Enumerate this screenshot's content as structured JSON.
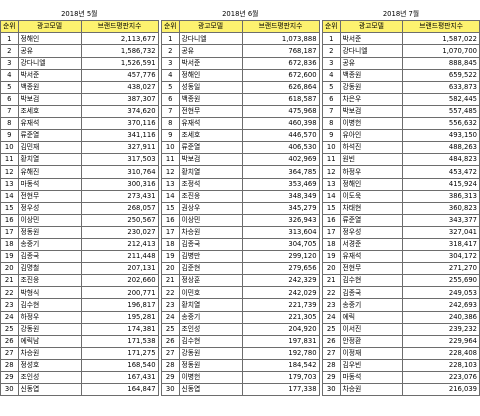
{
  "headers": {
    "rank": "순위",
    "model": "광고모델",
    "score": "브랜드평판지수"
  },
  "tables": [
    {
      "title": "2018년 5월",
      "rows": [
        [
          "1",
          "정해인",
          "2,113,677"
        ],
        [
          "2",
          "공유",
          "1,586,732"
        ],
        [
          "3",
          "강다니엘",
          "1,526,591"
        ],
        [
          "4",
          "박서준",
          "457,776"
        ],
        [
          "5",
          "백종원",
          "438,027"
        ],
        [
          "6",
          "박보검",
          "387,307"
        ],
        [
          "7",
          "조세호",
          "374,620"
        ],
        [
          "8",
          "유재석",
          "370,116"
        ],
        [
          "9",
          "류준열",
          "341,116"
        ],
        [
          "10",
          "김민재",
          "327,911"
        ],
        [
          "11",
          "황치열",
          "317,503"
        ],
        [
          "12",
          "유해진",
          "310,764"
        ],
        [
          "13",
          "마동석",
          "300,316"
        ],
        [
          "14",
          "전현무",
          "273,431"
        ],
        [
          "15",
          "정우성",
          "268,057"
        ],
        [
          "16",
          "이상민",
          "250,567"
        ],
        [
          "17",
          "정동원",
          "230,027"
        ],
        [
          "18",
          "송중기",
          "212,413"
        ],
        [
          "19",
          "김종국",
          "211,448"
        ],
        [
          "20",
          "김명철",
          "207,131"
        ],
        [
          "21",
          "조진웅",
          "202,660"
        ],
        [
          "22",
          "박형식",
          "200,771"
        ],
        [
          "23",
          "김수현",
          "196,817"
        ],
        [
          "24",
          "하정우",
          "195,281"
        ],
        [
          "25",
          "강동원",
          "174,381"
        ],
        [
          "26",
          "에릭남",
          "171,538"
        ],
        [
          "27",
          "차승원",
          "171,275"
        ],
        [
          "28",
          "정성호",
          "168,540"
        ],
        [
          "29",
          "조인성",
          "167,431"
        ],
        [
          "30",
          "신동엽",
          "164,847"
        ]
      ]
    },
    {
      "title": "2018년 6월",
      "rows": [
        [
          "1",
          "강다니엘",
          "1,073,888"
        ],
        [
          "2",
          "공유",
          "768,187"
        ],
        [
          "3",
          "박서준",
          "672,836"
        ],
        [
          "4",
          "정해인",
          "672,600"
        ],
        [
          "5",
          "성동일",
          "626,864"
        ],
        [
          "6",
          "백종원",
          "618,587"
        ],
        [
          "7",
          "전현무",
          "475,968"
        ],
        [
          "8",
          "유재석",
          "460,398"
        ],
        [
          "9",
          "조세호",
          "446,570"
        ],
        [
          "10",
          "류준열",
          "406,530"
        ],
        [
          "11",
          "박보검",
          "402,969"
        ],
        [
          "12",
          "황치열",
          "364,785"
        ],
        [
          "13",
          "조정석",
          "353,469"
        ],
        [
          "14",
          "조진웅",
          "348,349"
        ],
        [
          "15",
          "권상우",
          "345,279"
        ],
        [
          "16",
          "이상민",
          "326,943"
        ],
        [
          "17",
          "차승원",
          "313,604"
        ],
        [
          "18",
          "김종국",
          "304,705"
        ],
        [
          "19",
          "김병만",
          "299,120"
        ],
        [
          "20",
          "김준현",
          "279,656"
        ],
        [
          "21",
          "정상훈",
          "242,329"
        ],
        [
          "22",
          "이민호",
          "242,029"
        ],
        [
          "23",
          "황치열",
          "221,739"
        ],
        [
          "24",
          "송중기",
          "221,305"
        ],
        [
          "25",
          "조인성",
          "204,920"
        ],
        [
          "26",
          "김수현",
          "197,831"
        ],
        [
          "27",
          "강동원",
          "192,780"
        ],
        [
          "28",
          "정동원",
          "184,542"
        ],
        [
          "29",
          "이병헌",
          "179,703"
        ],
        [
          "30",
          "신동엽",
          "177,338"
        ]
      ]
    },
    {
      "title": "2018년 7월",
      "rows": [
        [
          "1",
          "박서준",
          "1,587,022"
        ],
        [
          "2",
          "강다니엘",
          "1,070,700"
        ],
        [
          "3",
          "공유",
          "888,845"
        ],
        [
          "4",
          "백종원",
          "659,522"
        ],
        [
          "5",
          "강동원",
          "633,873"
        ],
        [
          "6",
          "차은우",
          "582,445"
        ],
        [
          "7",
          "박보검",
          "557,485"
        ],
        [
          "8",
          "이병헌",
          "556,632"
        ],
        [
          "9",
          "유아인",
          "493,150"
        ],
        [
          "10",
          "하석진",
          "488,263"
        ],
        [
          "11",
          "원빈",
          "484,823"
        ],
        [
          "12",
          "하정우",
          "453,472"
        ],
        [
          "13",
          "정해인",
          "415,924"
        ],
        [
          "14",
          "이도욱",
          "386,313"
        ],
        [
          "15",
          "차태현",
          "360,823"
        ],
        [
          "16",
          "류준열",
          "343,377"
        ],
        [
          "17",
          "정우성",
          "327,041"
        ],
        [
          "18",
          "서경준",
          "318,417"
        ],
        [
          "19",
          "유재석",
          "304,172"
        ],
        [
          "20",
          "전현무",
          "271,270"
        ],
        [
          "21",
          "김수현",
          "255,690"
        ],
        [
          "22",
          "김종국",
          "249,053"
        ],
        [
          "23",
          "송중기",
          "242,693"
        ],
        [
          "24",
          "에릭",
          "240,386"
        ],
        [
          "25",
          "이서진",
          "239,232"
        ],
        [
          "26",
          "안정환",
          "229,964"
        ],
        [
          "27",
          "이정재",
          "228,408"
        ],
        [
          "28",
          "김우빈",
          "228,103"
        ],
        [
          "29",
          "마동석",
          "223,076"
        ],
        [
          "30",
          "차승원",
          "216,039"
        ]
      ]
    }
  ]
}
